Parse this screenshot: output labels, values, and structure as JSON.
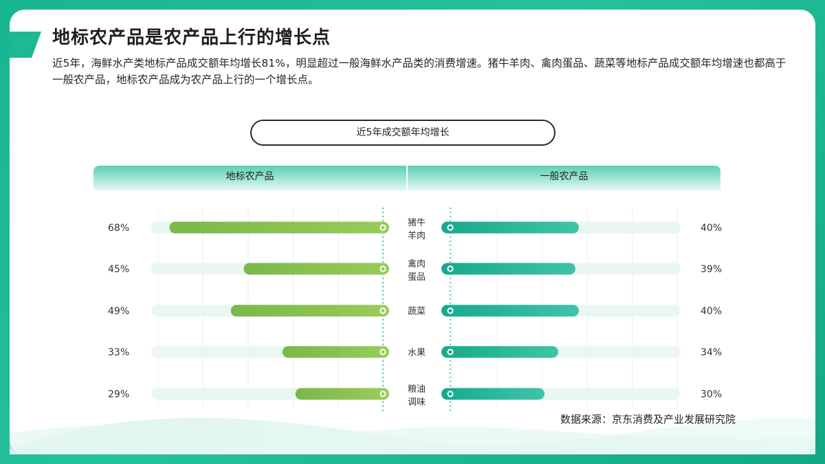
{
  "title": "地标农产品是农产品上行的增长点",
  "intro": "近5年，海鲜水产类地标产品成交额年均增长81%，明显超过一般海鲜水产品类的消费增速。猪牛羊肉、禽肉蛋品、蔬菜等地标产品成交额年均增速也都高于一般农产品，地标农产品成为农产品上行的一个增长点。",
  "source": "数据来源：京东消费及产业发展研究院",
  "colors": {
    "left_bar": "#8cc34f",
    "right_bar": "#1fb393",
    "track": "#eaf6f2",
    "frame": "#1db894"
  },
  "chart_data": {
    "type": "bar",
    "title": "近5年成交额年均增长",
    "series": [
      {
        "name": "地标农产品",
        "values": [
          68,
          45,
          49,
          33,
          29
        ]
      },
      {
        "name": "一般农产品",
        "values": [
          40,
          39,
          40,
          34,
          30
        ]
      }
    ],
    "categories": [
      [
        "猪牛",
        "羊肉"
      ],
      [
        "禽肉",
        "蛋品"
      ],
      [
        "蔬菜"
      ],
      [
        "水果"
      ],
      [
        "粮油",
        "调味"
      ]
    ],
    "value_labels_left": [
      "68%",
      "45%",
      "49%",
      "33%",
      "29%"
    ],
    "value_labels_right": [
      "40%",
      "39%",
      "40%",
      "34%",
      "30%"
    ],
    "orientation": "horizontal-butterfly",
    "xlim": [
      0,
      100
    ],
    "grid": true
  }
}
